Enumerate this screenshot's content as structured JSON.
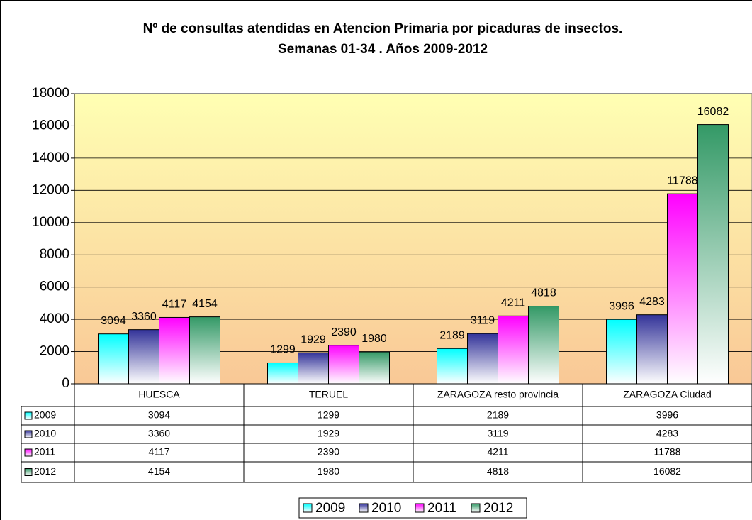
{
  "chart_data": {
    "type": "bar",
    "title": "Nº de consultas atendidas en Atencion Primaria por picaduras de insectos. Semanas 01-34 . Años 2009-2012",
    "categories": [
      "HUESCA",
      "TERUEL",
      "ZARAGOZA resto provincia",
      "ZARAGOZA Ciudad"
    ],
    "series": [
      {
        "name": "2009",
        "color": "#00ffff",
        "values": [
          3094,
          1299,
          2189,
          3996
        ]
      },
      {
        "name": "2010",
        "color": "#333399",
        "values": [
          3360,
          1929,
          3119,
          4283
        ]
      },
      {
        "name": "2011",
        "color": "#ff00ff",
        "values": [
          4117,
          2390,
          4211,
          11788
        ]
      },
      {
        "name": "2012",
        "color": "#339966",
        "values": [
          4154,
          1980,
          4818,
          16082
        ]
      }
    ],
    "ylim": [
      0,
      18000
    ],
    "yticks": [
      0,
      2000,
      4000,
      6000,
      8000,
      10000,
      12000,
      14000,
      16000,
      18000
    ],
    "grid": true,
    "legend": "bottom"
  }
}
